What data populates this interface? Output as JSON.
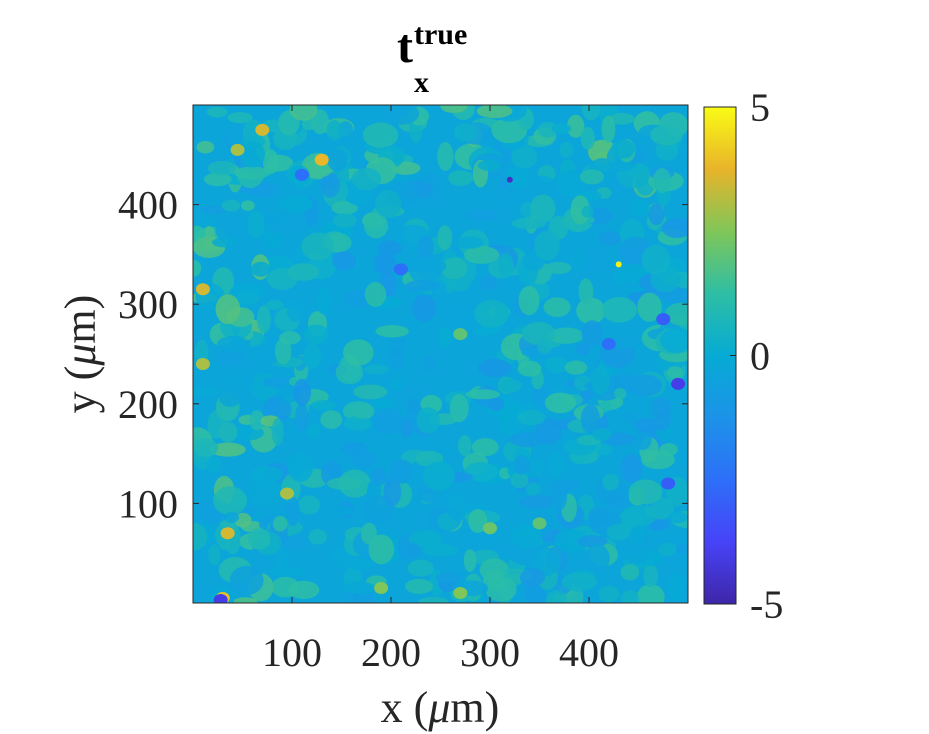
{
  "chart_data": {
    "type": "heatmap",
    "title": {
      "base": "t",
      "superscript": "true",
      "subscript": "x"
    },
    "xlabel": {
      "prefix": "x (",
      "unit_symbol": "μ",
      "unit": "m",
      "suffix": ")"
    },
    "ylabel": {
      "prefix": "y (",
      "unit_symbol": "μ",
      "unit": "m",
      "suffix": ")"
    },
    "xlim": [
      0,
      500
    ],
    "ylim": [
      0,
      500
    ],
    "x_ticks": [
      100,
      200,
      300,
      400
    ],
    "y_ticks": [
      100,
      200,
      300,
      400
    ],
    "colorbar": {
      "min": -5,
      "max": 5,
      "ticks": [
        5,
        0,
        -5
      ],
      "tick_labels": [
        "5",
        "0",
        "-5"
      ],
      "colormap": "parula"
    },
    "field_background_value": -0.3,
    "notable_spots": [
      {
        "x": 70,
        "y": 475,
        "value": 3.5
      },
      {
        "x": 45,
        "y": 455,
        "value": 3.0
      },
      {
        "x": 130,
        "y": 445,
        "value": 3.8
      },
      {
        "x": 110,
        "y": 430,
        "value": -2.5
      },
      {
        "x": 10,
        "y": 315,
        "value": 3.5
      },
      {
        "x": 10,
        "y": 240,
        "value": 3.0
      },
      {
        "x": 35,
        "y": 70,
        "value": 3.5
      },
      {
        "x": 30,
        "y": 5,
        "value": 4.0
      },
      {
        "x": 28,
        "y": 3,
        "value": -4.0
      },
      {
        "x": 430,
        "y": 340,
        "value": 4.8
      },
      {
        "x": 320,
        "y": 425,
        "value": -4.5
      },
      {
        "x": 490,
        "y": 220,
        "value": -4.0
      },
      {
        "x": 475,
        "y": 285,
        "value": -3.0
      },
      {
        "x": 210,
        "y": 335,
        "value": -2.5
      },
      {
        "x": 420,
        "y": 260,
        "value": -2.5
      },
      {
        "x": 480,
        "y": 120,
        "value": -3.0
      },
      {
        "x": 95,
        "y": 110,
        "value": 3.0
      },
      {
        "x": 270,
        "y": 270,
        "value": 2.0
      },
      {
        "x": 350,
        "y": 80,
        "value": 2.0
      },
      {
        "x": 300,
        "y": 75,
        "value": 2.2
      },
      {
        "x": 190,
        "y": 15,
        "value": 2.5
      },
      {
        "x": 270,
        "y": 10,
        "value": 2.5
      }
    ]
  }
}
